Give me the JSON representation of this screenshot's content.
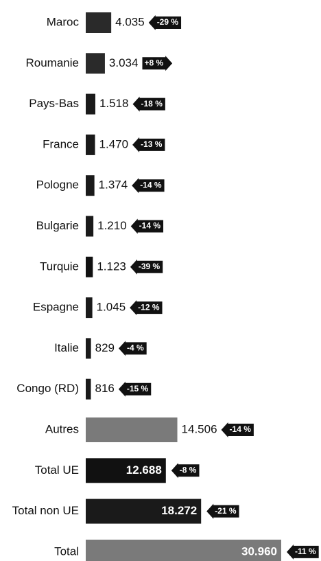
{
  "chart_data": {
    "type": "hbar",
    "categories": [
      "Maroc",
      "Roumanie",
      "Pays-Bas",
      "France",
      "Pologne",
      "Bulgarie",
      "Turquie",
      "Espagne",
      "Italie",
      "Congo (RD)",
      "Autres",
      "Total UE",
      "Total non UE",
      "Total"
    ],
    "values": [
      4035,
      3034,
      1518,
      1470,
      1374,
      1210,
      1123,
      1045,
      829,
      816,
      14506,
      12688,
      18272,
      30960
    ],
    "value_labels": [
      "4.035",
      "3.034",
      "1.518",
      "1.470",
      "1.374",
      "1.210",
      "1.123",
      "1.045",
      "829",
      "816",
      "14.506",
      "12.688",
      "18.272",
      "30.960"
    ],
    "changes": [
      -29,
      8,
      -18,
      -13,
      -14,
      -14,
      -39,
      -12,
      -4,
      -15,
      -14,
      -8,
      -21,
      -11
    ],
    "change_labels": [
      "-29 %",
      "+8 %",
      "-18 %",
      "-13 %",
      "-14 %",
      "-14 %",
      "-39 %",
      "-12 %",
      "-4 %",
      "-15 %",
      "-14 %",
      "-8 %",
      "-21 %",
      "-11 %"
    ],
    "colors": [
      "#2a2a2a",
      "#2a2a2a",
      "#1a1a1a",
      "#1a1a1a",
      "#1a1a1a",
      "#1a1a1a",
      "#111111",
      "#1a1a1a",
      "#1a1a1a",
      "#1a1a1a",
      "#7a7a7a",
      "#111111",
      "#1a1a1a",
      "#7a7a7a"
    ]
  }
}
